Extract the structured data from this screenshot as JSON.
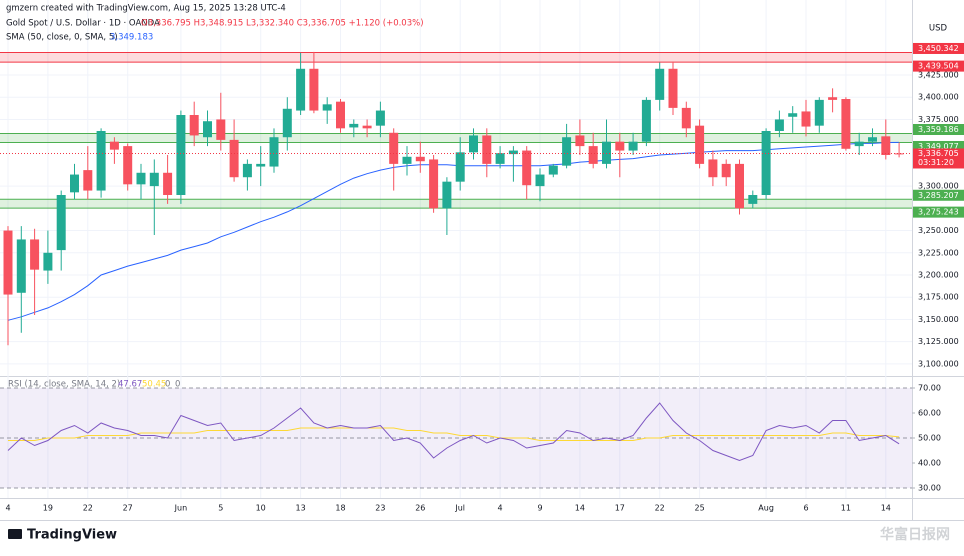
{
  "header": {
    "attribution": "gmzern created with TradingView.com, Aug 15, 2025 13:28 UTC-4",
    "symbol": "Gold Spot / U.S. Dollar · 1D · OANDA",
    "ohlc": "O3,336.795 H3,348.915 L3,332.340 C3,336.705 +1.120 (+0.03%)",
    "currency": "USD",
    "logo": "TradingView",
    "watermark": "华富日报网"
  },
  "chart_data": [
    {
      "type": "candlestick",
      "categories": [
        "4",
        null,
        null,
        "19",
        null,
        null,
        "22",
        null,
        null,
        "27",
        null,
        null,
        null,
        "Jun",
        null,
        null,
        "5",
        null,
        null,
        "10",
        null,
        null,
        "13",
        null,
        null,
        "18",
        null,
        null,
        "23",
        null,
        null,
        "26",
        null,
        null,
        "Jul",
        null,
        null,
        "4",
        null,
        null,
        "9",
        null,
        null,
        "14",
        null,
        null,
        "17",
        null,
        null,
        "22",
        null,
        null,
        "25",
        null,
        null,
        null,
        null,
        "Aug",
        null,
        null,
        "6",
        null,
        null,
        "11",
        null,
        null,
        "14",
        null
      ],
      "open": [
        3250,
        3180,
        3240,
        3205,
        3228,
        3293,
        3318,
        3295,
        3350,
        3345,
        3302,
        3300,
        3315,
        3290,
        3380,
        3355,
        3375,
        3352,
        3310,
        3322,
        3322,
        3355,
        3385,
        3432,
        3385,
        3395,
        3366,
        3368,
        3368,
        3360,
        3325,
        3333,
        3330,
        3275,
        3305,
        3338,
        3357,
        3325,
        3336,
        3340,
        3300,
        3313,
        3323,
        3357,
        3345,
        3325,
        3350,
        3340,
        3350,
        3397,
        3432,
        3388,
        3368,
        3330,
        3325,
        3325,
        3280,
        3290,
        3362,
        3378,
        3384,
        3368,
        3400,
        3398,
        3345,
        3350,
        3356,
        3336.795
      ],
      "high": [
        3255,
        3255,
        3252,
        3250,
        3295,
        3325,
        3345,
        3365,
        3355,
        3348,
        3325,
        3330,
        3335,
        3385,
        3395,
        3385,
        3405,
        3375,
        3330,
        3345,
        3365,
        3400,
        3450,
        3451,
        3400,
        3398,
        3375,
        3375,
        3395,
        3365,
        3345,
        3350,
        3335,
        3310,
        3355,
        3365,
        3365,
        3345,
        3345,
        3345,
        3320,
        3325,
        3370,
        3375,
        3360,
        3375,
        3360,
        3360,
        3400,
        3439,
        3440,
        3395,
        3375,
        3340,
        3330,
        3330,
        3295,
        3365,
        3385,
        3390,
        3397,
        3400,
        3410,
        3400,
        3360,
        3365,
        3375,
        3348.915
      ],
      "low": [
        3121,
        3135,
        3155,
        3190,
        3205,
        3285,
        3285,
        3287,
        3325,
        3295,
        3285,
        3245,
        3280,
        3280,
        3345,
        3345,
        3340,
        3305,
        3295,
        3300,
        3315,
        3340,
        3380,
        3382,
        3370,
        3360,
        3355,
        3355,
        3355,
        3295,
        3312,
        3315,
        3270,
        3245,
        3295,
        3330,
        3310,
        3320,
        3305,
        3285,
        3283,
        3310,
        3320,
        3335,
        3320,
        3320,
        3310,
        3335,
        3345,
        3385,
        3380,
        3355,
        3320,
        3300,
        3300,
        3268,
        3275,
        3285,
        3355,
        3360,
        3356,
        3360,
        3383,
        3340,
        3335,
        3345,
        3330,
        3332.34
      ],
      "close": [
        3178,
        3240,
        3206,
        3225,
        3290,
        3313,
        3295,
        3362,
        3341,
        3302,
        3315,
        3315,
        3290,
        3380,
        3357,
        3373,
        3352,
        3310,
        3325,
        3325,
        3355,
        3387,
        3432,
        3385,
        3392,
        3365,
        3370,
        3365,
        3385,
        3325,
        3333,
        3328,
        3275,
        3305,
        3338,
        3357,
        3325,
        3337,
        3340,
        3301,
        3313,
        3323,
        3355,
        3345,
        3325,
        3350,
        3340,
        3350,
        3397,
        3432,
        3388,
        3365,
        3325,
        3310,
        3310,
        3275,
        3290,
        3362,
        3375,
        3382,
        3367,
        3397,
        3397,
        3342,
        3350,
        3355,
        3335,
        3336.705
      ],
      "up_color": "#22ab94",
      "down_color": "#f7525f",
      "ylim": [
        3087.5,
        3492.5
      ],
      "yticks": [
        {
          "value": 3100,
          "label": "3,100.000"
        },
        {
          "value": 3125,
          "label": "3,125.000"
        },
        {
          "value": 3150,
          "label": "3,150.000"
        },
        {
          "value": 3175,
          "label": "3,175.000"
        },
        {
          "value": 3200,
          "label": "3,200.000"
        },
        {
          "value": 3225,
          "label": "3,225.000"
        },
        {
          "value": 3250,
          "label": "3,250.000"
        },
        {
          "value": 3300,
          "label": "3,300.000"
        },
        {
          "value": 3375,
          "label": "3,375.000"
        },
        {
          "value": 3400,
          "label": "3,400.000"
        },
        {
          "value": 3425,
          "label": "3,425.000"
        }
      ],
      "grid": true,
      "series": [
        {
          "name": "SMA (50, close, 0, SMA, 5)",
          "legend_value": "3,349.183",
          "color": "#2962ff",
          "values": [
            3149,
            3153,
            3158,
            3163,
            3170,
            3178,
            3188,
            3200,
            3205,
            3210,
            3214,
            3218,
            3222,
            3228,
            3232,
            3236,
            3243,
            3248,
            3254,
            3260,
            3265,
            3271,
            3278,
            3286,
            3294,
            3302,
            3309,
            3314,
            3318,
            3321,
            3323,
            3324,
            3324,
            3324,
            3323,
            3323,
            3323,
            3323,
            3323,
            3323,
            3323,
            3324,
            3325,
            3327,
            3328,
            3329,
            3330,
            3331,
            3333,
            3335,
            3336,
            3337,
            3338,
            3339,
            3340,
            3340,
            3340,
            3341,
            3342,
            3343,
            3344,
            3345,
            3346,
            3347,
            3348,
            3348,
            3349,
            3349.183
          ]
        }
      ],
      "zones": [
        {
          "top": {
            "value": 3450.342,
            "label": "3,450.342"
          },
          "bottom": {
            "value": 3439.504,
            "label": "3,439.504"
          },
          "color": "#f23645"
        },
        {
          "top": {
            "value": 3359.186,
            "label": "3,359.186"
          },
          "bottom": {
            "value": 3349.077,
            "label": "3,349.077"
          },
          "color": "#4caf50"
        },
        {
          "top": {
            "value": 3285.207,
            "label": "3,285.207"
          },
          "bottom": {
            "value": 3275.243,
            "label": "3,275.243"
          },
          "color": "#4caf50"
        }
      ],
      "last_price": {
        "value": 3336.705,
        "label": "3,336.705",
        "countdown": "03:31:20",
        "color": "#f23645"
      }
    },
    {
      "type": "line",
      "title": "RSI (14, close, SMA, 14, 2)",
      "legend_extra": [
        "0",
        "0"
      ],
      "ylim": [
        26,
        74
      ],
      "yticks": [
        {
          "value": 70,
          "label": "70.00"
        },
        {
          "value": 60,
          "label": "60.00"
        },
        {
          "value": 50,
          "label": "50.00"
        },
        {
          "value": 40,
          "label": "40.00"
        },
        {
          "value": 30,
          "label": "30.00"
        }
      ],
      "band": [
        30,
        70
      ],
      "levels": [
        70,
        50,
        30
      ],
      "series": [
        {
          "legend_value": "47.67",
          "color": "#7e57c2",
          "values": [
            45,
            50,
            47,
            49,
            53,
            55,
            52,
            56,
            54,
            53,
            51,
            51,
            50,
            59,
            57,
            55,
            56,
            49,
            50,
            51,
            54,
            58,
            62,
            56,
            54,
            55,
            54,
            54,
            55,
            49,
            50,
            48,
            42,
            46,
            49,
            51,
            48,
            50,
            49,
            46,
            47,
            48,
            53,
            52,
            49,
            50,
            49,
            51,
            58,
            64,
            57,
            52,
            49,
            45,
            43,
            41,
            43,
            53,
            55,
            54,
            55,
            52,
            57,
            57,
            49,
            50,
            51,
            47.67
          ]
        },
        {
          "legend_value": "50.45",
          "color": "#fdd835",
          "values": [
            49,
            49,
            49,
            50,
            50,
            50,
            51,
            51,
            51,
            51,
            52,
            52,
            52,
            52,
            52,
            53,
            53,
            53,
            53,
            53,
            53,
            53,
            54,
            54,
            54,
            54,
            54,
            54,
            54,
            54,
            53,
            53,
            52,
            52,
            51,
            51,
            51,
            50,
            50,
            50,
            49,
            49,
            49,
            49,
            49,
            49,
            49,
            49,
            50,
            50,
            51,
            51,
            51,
            51,
            51,
            51,
            51,
            51,
            51,
            51,
            51,
            51,
            52,
            52,
            51,
            51,
            51,
            50.45
          ]
        }
      ]
    }
  ]
}
